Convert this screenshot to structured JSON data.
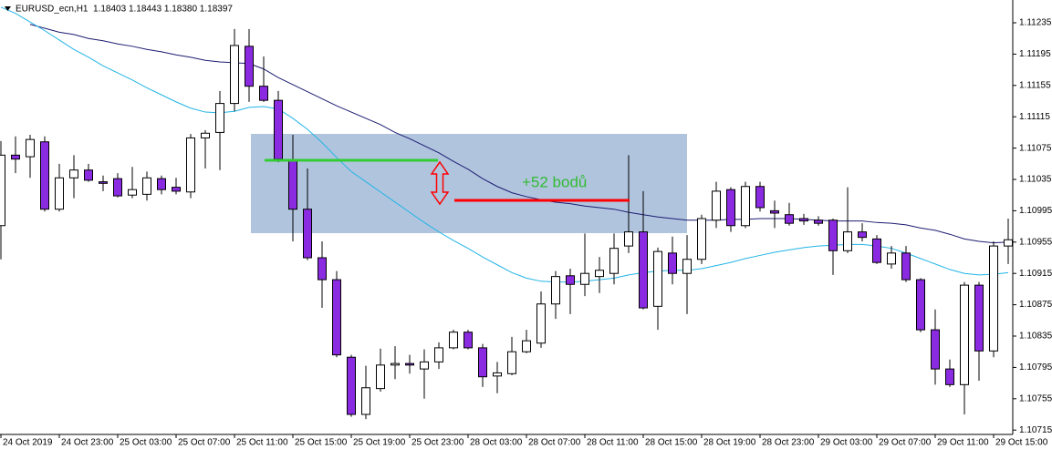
{
  "chart_data": {
    "type": "candlestick",
    "title": "EURUSD_ecn,H1  1.18403 1.18443 1.18380 1.18397",
    "annotation": "+52 bodů",
    "categories": [
      "24 Oct 2019",
      null,
      null,
      null,
      "24 Oct 23:00",
      null,
      null,
      null,
      "25 Oct 03:00",
      null,
      null,
      null,
      "25 Oct 07:00",
      null,
      null,
      null,
      "25 Oct 11:00",
      null,
      null,
      null,
      "25 Oct 15:00",
      null,
      null,
      null,
      "25 Oct 19:00",
      null,
      null,
      null,
      "25 Oct 23:00",
      null,
      null,
      null,
      "28 Oct 03:00",
      null,
      null,
      null,
      "28 Oct 07:00",
      null,
      null,
      null,
      "28 Oct 11:00",
      null,
      null,
      null,
      "28 Oct 15:00",
      null,
      null,
      null,
      "28 Oct 19:00",
      null,
      null,
      null,
      "28 Oct 23:00",
      null,
      null,
      null,
      "29 Oct 03:00",
      null,
      null,
      null,
      "29 Oct 07:00",
      null,
      null,
      null,
      "29 Oct 11:00",
      null,
      null,
      null,
      "29 Oct 15:00",
      null
    ],
    "open": [
      1.10976,
      1.11066,
      1.11064,
      1.11083,
      1.10997,
      1.11037,
      1.11047,
      1.11032,
      1.11036,
      1.11015,
      1.11016,
      1.11036,
      1.11025,
      1.11019,
      1.11088,
      1.11095,
      1.11132,
      1.11205,
      1.11154,
      1.11136,
      1.11059,
      1.10997,
      1.10935,
      1.10907,
      1.10808,
      1.10735,
      1.10768,
      1.10798,
      1.108,
      1.10793,
      1.10802,
      1.1082,
      1.1084,
      1.1082,
      1.10784,
      1.10787,
      1.10815,
      1.10826,
      1.10876,
      1.10912,
      1.10901,
      1.10911,
      1.10915,
      1.1095,
      1.10968,
      1.10873,
      1.10941,
      1.10915,
      1.10933,
      1.10983,
      1.11022,
      1.10976,
      1.11026,
      1.10995,
      1.1099,
      1.10985,
      1.10983,
      1.10983,
      1.10944,
      1.10968,
      1.10959,
      1.10927,
      1.10941,
      1.10907,
      1.10843,
      1.10793,
      1.10773,
      1.109,
      1.10816,
      1.1095
    ],
    "high": [
      1.11084,
      1.1109,
      1.11092,
      1.1109,
      1.11055,
      1.11066,
      1.11055,
      1.1104,
      1.11043,
      1.11051,
      1.11045,
      1.1104,
      1.11037,
      1.11093,
      1.11098,
      1.11148,
      1.11227,
      1.11227,
      1.11192,
      1.11148,
      1.11092,
      1.11049,
      1.10956,
      1.10918,
      1.10811,
      1.10797,
      1.10819,
      1.10822,
      1.10811,
      1.10818,
      1.10827,
      1.10843,
      1.10843,
      1.10825,
      1.10802,
      1.10834,
      1.10843,
      1.10892,
      1.10918,
      1.10921,
      1.10966,
      1.10936,
      1.10966,
      1.11066,
      1.1102,
      1.10948,
      1.10962,
      1.10964,
      1.1099,
      1.11032,
      1.11025,
      1.11032,
      1.11032,
      1.11008,
      1.11005,
      1.10991,
      1.10988,
      1.10985,
      1.11025,
      1.10979,
      1.10964,
      1.1095,
      1.1095,
      1.10909,
      1.10869,
      1.10805,
      1.10904,
      1.10904,
      1.10956,
      1.10985
    ],
    "low": [
      1.10933,
      1.11043,
      1.11037,
      1.10994,
      1.10994,
      1.11011,
      1.11032,
      1.1102,
      1.11012,
      1.11011,
      1.11008,
      1.11016,
      1.11016,
      1.11011,
      1.11049,
      1.11047,
      1.11122,
      1.11134,
      1.11134,
      1.11057,
      1.10956,
      1.10932,
      1.10871,
      1.10808,
      1.10732,
      1.10729,
      1.10764,
      1.1078,
      1.10787,
      1.10755,
      1.10793,
      1.10818,
      1.10818,
      1.1077,
      1.10762,
      1.10785,
      1.10813,
      1.1082,
      1.10857,
      1.10863,
      1.10886,
      1.1089,
      1.10901,
      1.10941,
      1.10869,
      1.10843,
      1.10901,
      1.10863,
      1.10927,
      1.10973,
      1.10968,
      1.10973,
      1.10994,
      1.10973,
      1.10976,
      1.10977,
      1.10976,
      1.10913,
      1.10941,
      1.10956,
      1.10927,
      1.10921,
      1.10904,
      1.1084,
      1.10773,
      1.1077,
      1.10735,
      1.10778,
      1.10808,
      1.10927
    ],
    "close": [
      1.11066,
      1.11061,
      1.11086,
      1.10997,
      1.11037,
      1.11047,
      1.11034,
      1.1103,
      1.11014,
      1.11022,
      1.11037,
      1.11022,
      1.1102,
      1.11088,
      1.11094,
      1.11132,
      1.11206,
      1.11154,
      1.11136,
      1.11061,
      1.10997,
      1.10935,
      1.10907,
      1.10811,
      1.10735,
      1.10769,
      1.10798,
      1.108,
      1.10798,
      1.10802,
      1.1082,
      1.1084,
      1.1082,
      1.10783,
      1.10788,
      1.10815,
      1.10829,
      1.10876,
      1.10911,
      1.10901,
      1.10915,
      1.10919,
      1.10947,
      1.10968,
      1.10871,
      1.10943,
      1.10915,
      1.10933,
      1.10985,
      1.1102,
      1.10976,
      1.11026,
      1.10999,
      1.10992,
      1.10979,
      1.10982,
      1.10979,
      1.10944,
      1.10968,
      1.10961,
      1.10929,
      1.10941,
      1.10907,
      1.10843,
      1.10793,
      1.10773,
      1.109,
      1.10816,
      1.1095,
      1.10958
    ],
    "bull_color": "#ffffff",
    "bear_color": "#8a2be2",
    "wick_color": "#000000",
    "overlays": [
      {
        "color": "#1c1c72",
        "values": [
          null,
          null,
          1.11233,
          1.11228,
          1.11223,
          1.1122,
          1.11215,
          1.11212,
          1.11208,
          1.11205,
          1.11201,
          1.11198,
          1.11194,
          1.11191,
          1.11187,
          1.11185,
          1.11184,
          1.11183,
          1.11176,
          1.11165,
          1.11156,
          1.11147,
          1.11138,
          1.11129,
          1.11121,
          1.11113,
          1.11105,
          1.11095,
          1.11087,
          1.11078,
          1.11069,
          1.11058,
          1.11048,
          1.11036,
          1.11026,
          1.11018,
          1.11013,
          1.11009,
          1.11006,
          1.11004,
          1.11001,
          1.10999,
          1.10997,
          1.10993,
          1.1099,
          1.10987,
          1.10985,
          1.10983,
          1.10983,
          1.10983,
          1.10984,
          1.10984,
          1.10985,
          1.10985,
          1.10985,
          1.10984,
          1.10983,
          1.10982,
          1.10982,
          1.10982,
          1.1098,
          1.10979,
          1.10977,
          1.10973,
          1.1097,
          1.10965,
          1.10959,
          1.10956,
          1.10954,
          1.10955
        ]
      },
      {
        "color": "#22b4e6",
        "values": [
          1.11255,
          1.11247,
          1.11236,
          1.11225,
          1.11213,
          1.11201,
          1.11191,
          1.1118,
          1.11171,
          1.11162,
          1.11152,
          1.11143,
          1.11134,
          1.11126,
          1.11121,
          1.1112,
          1.11122,
          1.11127,
          1.11128,
          1.11125,
          1.11113,
          1.11099,
          1.11082,
          1.11063,
          1.11045,
          1.11032,
          1.11019,
          1.11006,
          1.10993,
          1.1098,
          1.10968,
          1.10957,
          1.10947,
          1.10936,
          1.10926,
          1.10916,
          1.10909,
          1.10905,
          1.10904,
          1.10904,
          1.10905,
          1.10907,
          1.10909,
          1.10913,
          1.10916,
          1.10918,
          1.10919,
          1.10919,
          1.10921,
          1.10925,
          1.10929,
          1.10934,
          1.10938,
          1.10942,
          1.10945,
          1.10948,
          1.1095,
          1.10951,
          1.10952,
          1.10952,
          1.1095,
          1.10947,
          1.10941,
          1.10934,
          1.10927,
          1.1092,
          1.10915,
          1.10913,
          1.10914,
          1.10916
        ]
      }
    ],
    "ylim": [
      1.1071,
      1.11262
    ],
    "yticks": [
      1.11235,
      1.11195,
      1.11155,
      1.11115,
      1.11075,
      1.11035,
      1.10995,
      1.10955,
      1.10915,
      1.10875,
      1.10835,
      1.10795,
      1.10755,
      1.10715
    ],
    "grid": false
  }
}
